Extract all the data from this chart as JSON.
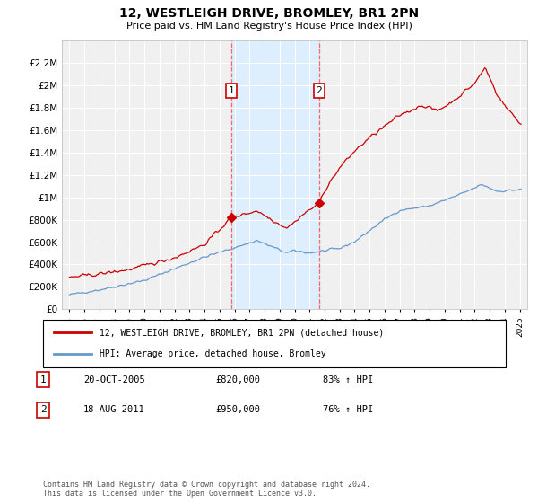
{
  "title": "12, WESTLEIGH DRIVE, BROMLEY, BR1 2PN",
  "subtitle": "Price paid vs. HM Land Registry's House Price Index (HPI)",
  "legend_line1": "12, WESTLEIGH DRIVE, BROMLEY, BR1 2PN (detached house)",
  "legend_line2": "HPI: Average price, detached house, Bromley",
  "transaction1_date": "20-OCT-2005",
  "transaction1_price": "£820,000",
  "transaction1_hpi": "83% ↑ HPI",
  "transaction1_year": 2005.8,
  "transaction1_value": 820000,
  "transaction2_date": "18-AUG-2011",
  "transaction2_price": "£950,000",
  "transaction2_hpi": "76% ↑ HPI",
  "transaction2_year": 2011.63,
  "transaction2_value": 950000,
  "footer": "Contains HM Land Registry data © Crown copyright and database right 2024.\nThis data is licensed under the Open Government Licence v3.0.",
  "ylim": [
    0,
    2400000
  ],
  "yticks": [
    0,
    200000,
    400000,
    600000,
    800000,
    1000000,
    1200000,
    1400000,
    1600000,
    1800000,
    2000000,
    2200000
  ],
  "ytick_labels": [
    "£0",
    "£200K",
    "£400K",
    "£600K",
    "£800K",
    "£1M",
    "£1.2M",
    "£1.4M",
    "£1.6M",
    "£1.8M",
    "£2M",
    "£2.2M"
  ],
  "hpi_color": "#6699cc",
  "price_color": "#cc0000",
  "background_color": "#ffffff",
  "plot_bg_color": "#f0f0f0",
  "grid_color": "#ffffff",
  "shade_color": "#ddeeff",
  "xlim_left": 1994.5,
  "xlim_right": 2025.5
}
